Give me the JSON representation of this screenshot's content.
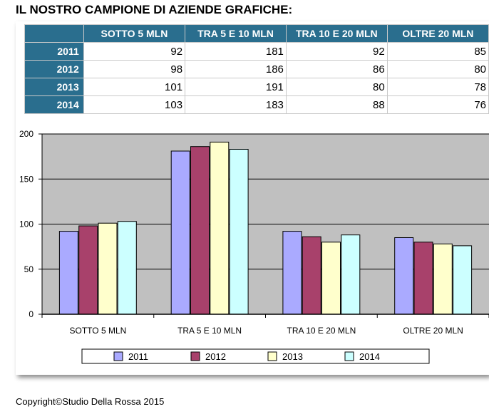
{
  "page": {
    "title": "IL NOSTRO CAMPIONE DI AZIENDE GRAFICHE:",
    "copyright": "Copyright©Studio Della Rossa 2015"
  },
  "table": {
    "headers": [
      "SOTTO 5 MLN",
      "TRA 5 E 10 MLN",
      "TRA 10 E 20 MLN",
      "OLTRE 20 MLN"
    ],
    "rows": [
      {
        "year": "2011",
        "values": [
          "92",
          "181",
          "92",
          "85"
        ]
      },
      {
        "year": "2012",
        "values": [
          "98",
          "186",
          "86",
          "80"
        ]
      },
      {
        "year": "2013",
        "values": [
          "101",
          "191",
          "80",
          "78"
        ]
      },
      {
        "year": "2014",
        "values": [
          "103",
          "183",
          "88",
          "76"
        ]
      }
    ]
  },
  "chart_data": {
    "type": "bar",
    "categories": [
      "SOTTO 5 MLN",
      "TRA 5 E 10 MLN",
      "TRA 10 E 20 MLN",
      "OLTRE 20 MLN"
    ],
    "series": [
      {
        "name": "2011",
        "values": [
          92,
          181,
          92,
          85
        ],
        "color": "#aaaaff"
      },
      {
        "name": "2012",
        "values": [
          98,
          186,
          86,
          80
        ],
        "color": "#a8416b"
      },
      {
        "name": "2013",
        "values": [
          101,
          191,
          80,
          78
        ],
        "color": "#ffffcc"
      },
      {
        "name": "2014",
        "values": [
          103,
          183,
          88,
          76
        ],
        "color": "#ccffff"
      }
    ],
    "yticks": [
      0,
      50,
      100,
      150,
      200
    ],
    "ylim": [
      0,
      200
    ],
    "grid": true,
    "plot_background": "#c0c0c0",
    "legend_position": "bottom"
  }
}
